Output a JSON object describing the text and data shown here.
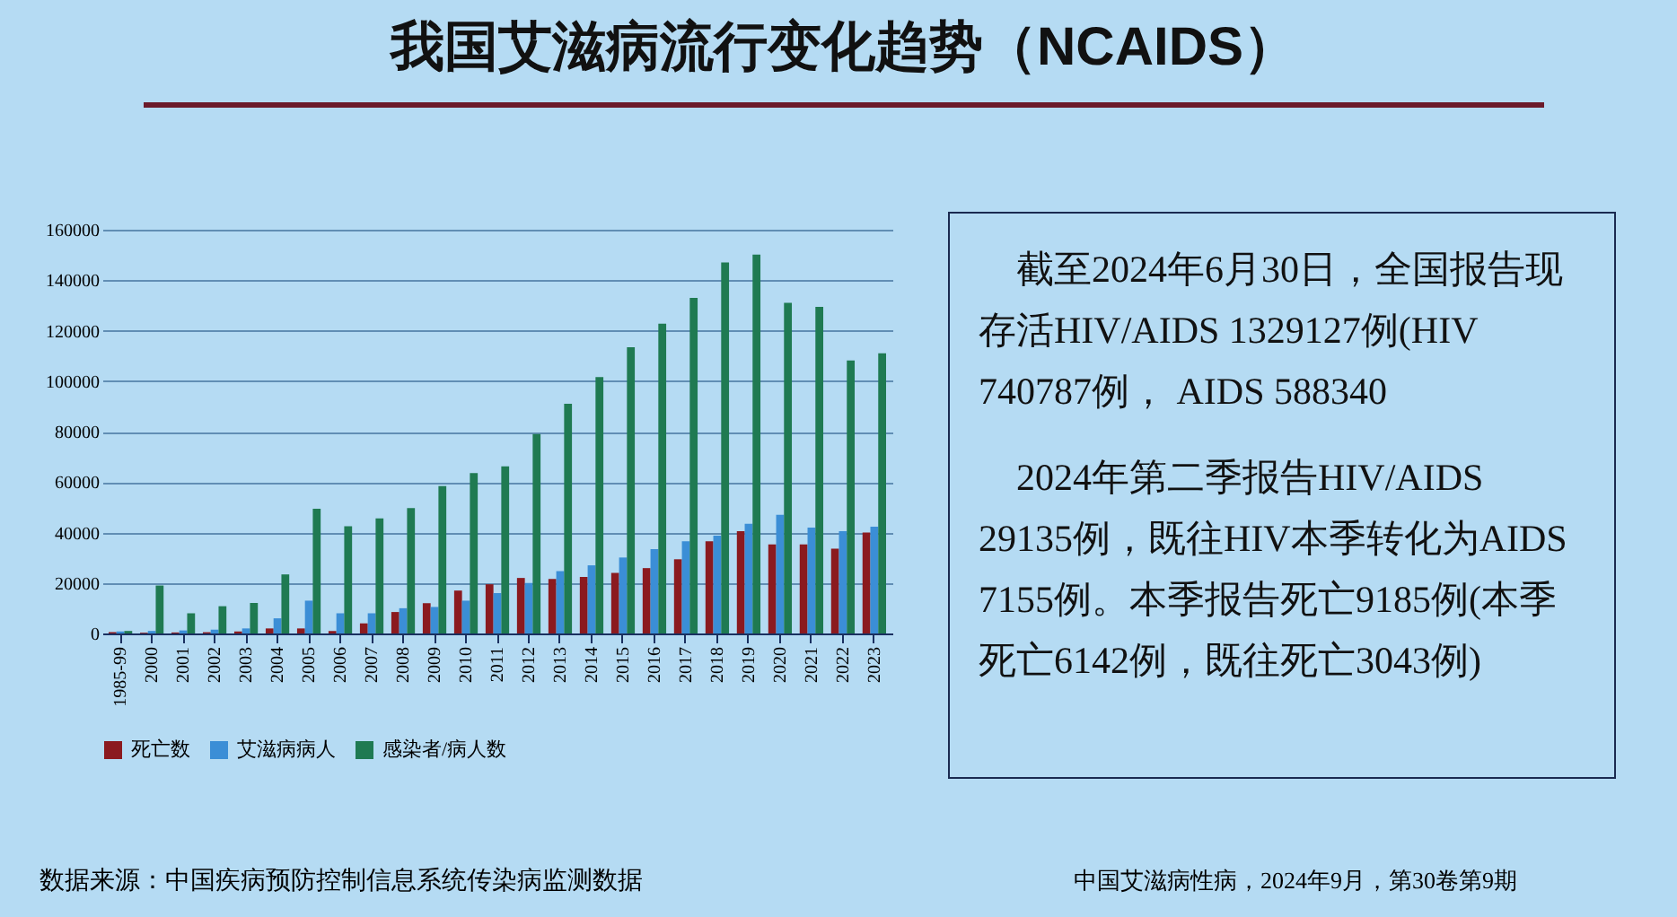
{
  "chart_data": {
    "type": "bar",
    "title": "我国艾滋病流行变化趋势（NCAIDS）",
    "categories": [
      "1985-99",
      "2000",
      "2001",
      "2002",
      "2003",
      "2004",
      "2005",
      "2006",
      "2007",
      "2008",
      "2009",
      "2010",
      "2011",
      "2012",
      "2013",
      "2014",
      "2015",
      "2016",
      "2017",
      "2018",
      "2019",
      "2020",
      "2021",
      "2022",
      "2023"
    ],
    "series": [
      {
        "name": "死亡数",
        "color": "#8b1a1f",
        "values": [
          500,
          300,
          400,
          500,
          800,
          2000,
          2000,
          1000,
          4000,
          8500,
          12000,
          17000,
          19500,
          22000,
          21600,
          22400,
          24000,
          25900,
          29400,
          36500,
          40500,
          35300,
          35300,
          33600,
          40000
        ]
      },
      {
        "name": "艾滋病病人",
        "color": "#3b8ed6",
        "values": [
          800,
          1000,
          1200,
          1500,
          2000,
          6000,
          13000,
          8000,
          8000,
          10000,
          10500,
          13000,
          16000,
          20000,
          24700,
          27000,
          30100,
          33400,
          36500,
          38800,
          43500,
          47000,
          42000,
          40500,
          42300
        ]
      },
      {
        "name": "感染者/病人数",
        "color": "#1f7a52",
        "values": [
          1000,
          19000,
          8000,
          10800,
          12100,
          23400,
          49400,
          42500,
          45600,
          49700,
          58400,
          63600,
          66200,
          79000,
          91000,
          101600,
          113400,
          122800,
          133000,
          147000,
          150100,
          131000,
          129400,
          108200,
          111000
        ]
      }
    ],
    "ylim": [
      0,
      160000
    ],
    "yticks": [
      0,
      20000,
      40000,
      60000,
      80000,
      100000,
      120000,
      140000,
      160000
    ],
    "grid": "y",
    "legend": "bottom",
    "annotations": [
      "截至2024年6月30日，全国报告现存活HIV/AIDS 1329127例(HIV 740787例， AIDS 588340",
      "2024年第二季报告HIV/AIDS 29135例，既往HIV本季转化为AIDS 7155例。本季报告死亡9185例(本季死亡6142例，既往死亡3043例)",
      "数据来源：中国疾病预防控制信息系统传染病监测数据",
      "中国艾滋病性病，2024年9月，第30卷第9期"
    ]
  }
}
